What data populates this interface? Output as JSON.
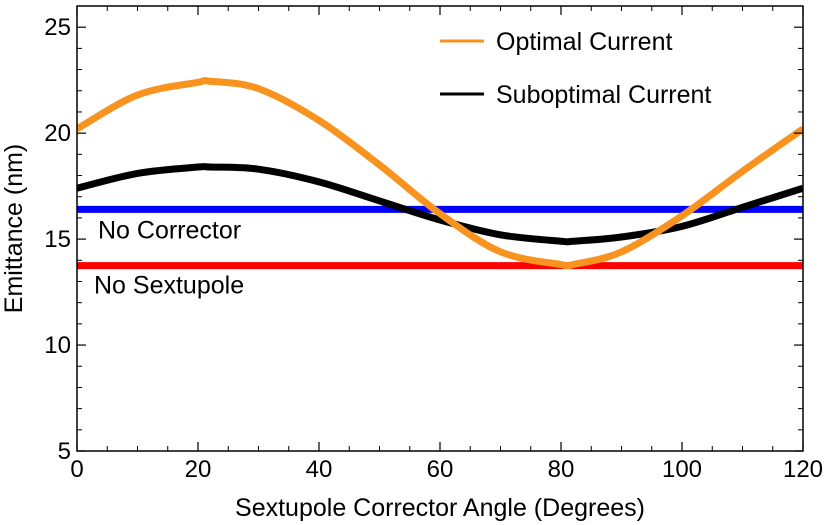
{
  "chart_data": {
    "type": "line",
    "xlabel": "Sextupole Corrector Angle (Degrees)",
    "ylabel": "Emittance (nm)",
    "xlim": [
      0,
      120
    ],
    "ylim": [
      5,
      26
    ],
    "xticks": [
      0,
      20,
      40,
      60,
      80,
      100,
      120
    ],
    "xtick_labels": [
      "0",
      "20",
      "40",
      "60",
      "80",
      "100",
      "120"
    ],
    "yticks": [
      5,
      10,
      15,
      20,
      25
    ],
    "ytick_labels": [
      "5",
      "10",
      "15",
      "20",
      "25"
    ],
    "grid": false,
    "legend_position": "top-right",
    "series": [
      {
        "name": "Optimal Current",
        "color": "#F7931E",
        "x": [
          0,
          10,
          20,
          22,
          30,
          40,
          50,
          60,
          70,
          80,
          82,
          90,
          100,
          110,
          120
        ],
        "y": [
          20.2,
          21.8,
          22.4,
          22.45,
          22.1,
          20.6,
          18.5,
          16.2,
          14.4,
          13.8,
          13.8,
          14.4,
          16.1,
          18.2,
          20.2
        ]
      },
      {
        "name": "Suboptimal Current",
        "color": "#000000",
        "x": [
          0,
          10,
          20,
          22,
          30,
          40,
          50,
          60,
          70,
          80,
          82,
          90,
          100,
          110,
          120
        ],
        "y": [
          17.4,
          18.1,
          18.4,
          18.4,
          18.3,
          17.7,
          16.8,
          15.9,
          15.2,
          14.9,
          14.9,
          15.1,
          15.6,
          16.5,
          17.4
        ]
      }
    ],
    "reference_lines": [
      {
        "label": "No Corrector",
        "y": 16.4,
        "color": "#0000FF"
      },
      {
        "label": "No Sextupole",
        "y": 13.75,
        "color": "#FF0000"
      }
    ]
  }
}
